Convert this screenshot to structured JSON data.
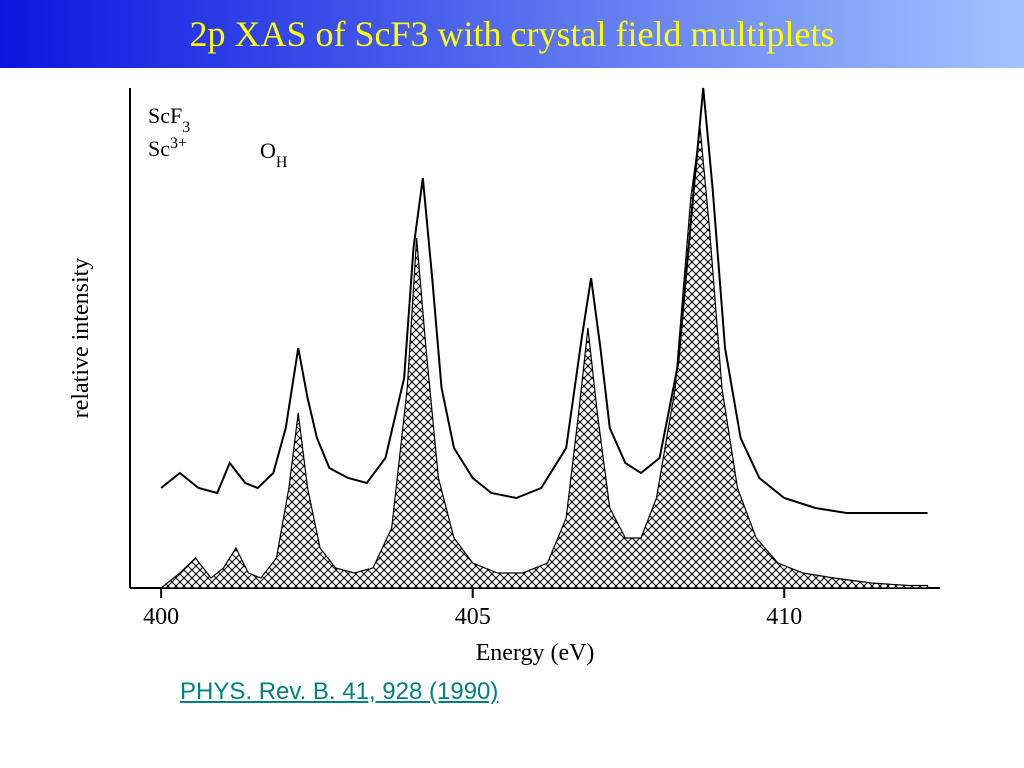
{
  "title": "2p XAS of ScF3 with crystal field multiplets",
  "citation": "PHYS. Rev. B. 41, 928 (1990)",
  "chart": {
    "type": "line+area",
    "xlabel": "Energy (eV)",
    "ylabel": "relative  intensity",
    "xlim": [
      399.5,
      412.5
    ],
    "ylim": [
      0,
      100
    ],
    "xticks": [
      400,
      405,
      410
    ],
    "annotation1": "ScF",
    "annotation1_sub": "3",
    "annotation2": "Sc",
    "annotation2_sup": "3+",
    "annotation3": "O",
    "annotation3_sub": "H",
    "axis_fontsize": 24,
    "tick_fontsize": 24,
    "annot_fontsize": 22,
    "line_color": "#000000",
    "fill_pattern": "crosshatch",
    "fill_color": "#000000",
    "line_width": 2,
    "plot_bg": "#ffffff",
    "experimental_curve": [
      [
        400.0,
        20
      ],
      [
        400.3,
        23
      ],
      [
        400.6,
        20
      ],
      [
        400.9,
        19
      ],
      [
        401.1,
        25
      ],
      [
        401.35,
        21
      ],
      [
        401.55,
        20
      ],
      [
        401.8,
        23
      ],
      [
        402.0,
        32
      ],
      [
        402.2,
        48
      ],
      [
        402.35,
        38
      ],
      [
        402.5,
        30
      ],
      [
        402.7,
        24
      ],
      [
        403.0,
        22
      ],
      [
        403.3,
        21
      ],
      [
        403.6,
        26
      ],
      [
        403.9,
        42
      ],
      [
        404.05,
        68
      ],
      [
        404.2,
        82
      ],
      [
        404.35,
        62
      ],
      [
        404.5,
        40
      ],
      [
        404.7,
        28
      ],
      [
        405.0,
        22
      ],
      [
        405.3,
        19
      ],
      [
        405.7,
        18
      ],
      [
        406.1,
        20
      ],
      [
        406.5,
        28
      ],
      [
        406.75,
        50
      ],
      [
        406.9,
        62
      ],
      [
        407.05,
        48
      ],
      [
        407.2,
        32
      ],
      [
        407.45,
        25
      ],
      [
        407.7,
        23
      ],
      [
        408.0,
        26
      ],
      [
        408.3,
        45
      ],
      [
        408.55,
        80
      ],
      [
        408.7,
        100
      ],
      [
        408.85,
        80
      ],
      [
        409.05,
        48
      ],
      [
        409.3,
        30
      ],
      [
        409.6,
        22
      ],
      [
        410.0,
        18
      ],
      [
        410.5,
        16
      ],
      [
        411.0,
        15
      ],
      [
        411.7,
        15
      ],
      [
        412.3,
        15
      ]
    ],
    "theory_curve": [
      [
        400.0,
        0
      ],
      [
        400.3,
        3
      ],
      [
        400.55,
        6
      ],
      [
        400.8,
        2
      ],
      [
        401.0,
        4
      ],
      [
        401.2,
        8
      ],
      [
        401.4,
        3
      ],
      [
        401.6,
        2
      ],
      [
        401.85,
        6
      ],
      [
        402.05,
        20
      ],
      [
        402.2,
        35
      ],
      [
        402.35,
        20
      ],
      [
        402.55,
        8
      ],
      [
        402.8,
        4
      ],
      [
        403.1,
        3
      ],
      [
        403.4,
        4
      ],
      [
        403.7,
        12
      ],
      [
        403.95,
        40
      ],
      [
        404.1,
        70
      ],
      [
        404.25,
        48
      ],
      [
        404.45,
        22
      ],
      [
        404.7,
        10
      ],
      [
        405.0,
        5
      ],
      [
        405.4,
        3
      ],
      [
        405.8,
        3
      ],
      [
        406.2,
        5
      ],
      [
        406.5,
        14
      ],
      [
        406.7,
        35
      ],
      [
        406.85,
        52
      ],
      [
        407.0,
        35
      ],
      [
        407.2,
        16
      ],
      [
        407.45,
        10
      ],
      [
        407.7,
        10
      ],
      [
        407.95,
        18
      ],
      [
        408.25,
        40
      ],
      [
        408.5,
        78
      ],
      [
        408.65,
        92
      ],
      [
        408.8,
        72
      ],
      [
        409.0,
        40
      ],
      [
        409.25,
        20
      ],
      [
        409.55,
        10
      ],
      [
        409.9,
        5
      ],
      [
        410.3,
        3
      ],
      [
        410.8,
        2
      ],
      [
        411.4,
        1
      ],
      [
        412.0,
        0.5
      ],
      [
        412.3,
        0.5
      ]
    ]
  }
}
